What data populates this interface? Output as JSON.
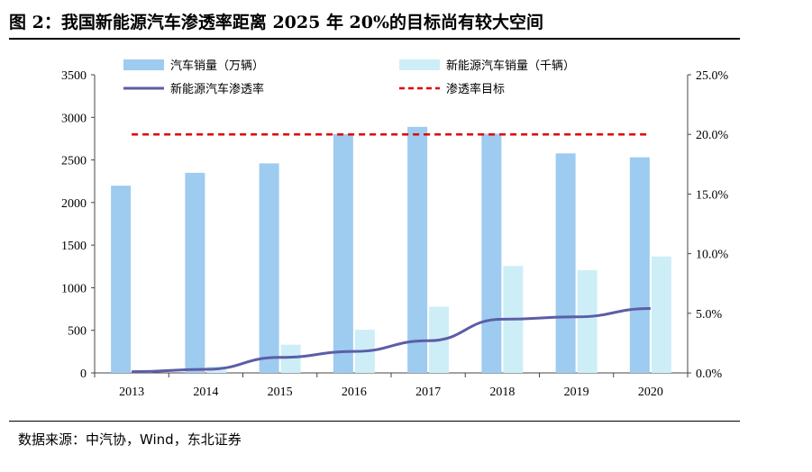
{
  "header": {
    "title": "图 2：我国新能源汽车渗透率距离 2025 年 20%的目标尚有较大空间"
  },
  "footer": {
    "source": "数据来源：中汽协，Wind，东北证券"
  },
  "chart_data": {
    "type": "bar",
    "categories": [
      "2013",
      "2014",
      "2015",
      "2016",
      "2017",
      "2018",
      "2019",
      "2020"
    ],
    "series": [
      {
        "name": "汽车销量（万辆）",
        "type": "bar",
        "axis": "left",
        "color": "#9ECBF0",
        "values": [
          2198,
          2349,
          2460,
          2803,
          2888,
          2808,
          2577,
          2531
        ]
      },
      {
        "name": "新能源汽车销量（千辆）",
        "type": "bar",
        "axis": "left",
        "color": "#CDEEF7",
        "values": [
          18,
          75,
          331,
          507,
          777,
          1256,
          1206,
          1367
        ]
      },
      {
        "name": "新能源汽车渗透率",
        "type": "line",
        "axis": "right",
        "color": "#5B5EA6",
        "values": [
          0.1,
          0.3,
          1.3,
          1.8,
          2.7,
          4.5,
          4.7,
          5.4
        ]
      },
      {
        "name": "渗透率目标",
        "type": "line",
        "axis": "right",
        "color": "#E00000",
        "dash": true,
        "values": [
          20,
          20,
          20,
          20,
          20,
          20,
          20,
          20
        ]
      }
    ],
    "yleft": {
      "lim": [
        0,
        3500
      ],
      "ticks": [
        "0",
        "500",
        "1000",
        "1500",
        "2000",
        "2500",
        "3000",
        "3500"
      ]
    },
    "yright": {
      "lim": [
        0,
        25
      ],
      "ticks": [
        "0.0%",
        "5.0%",
        "10.0%",
        "15.0%",
        "20.0%",
        "25.0%"
      ]
    },
    "legend_placement": "top",
    "grid": false
  }
}
